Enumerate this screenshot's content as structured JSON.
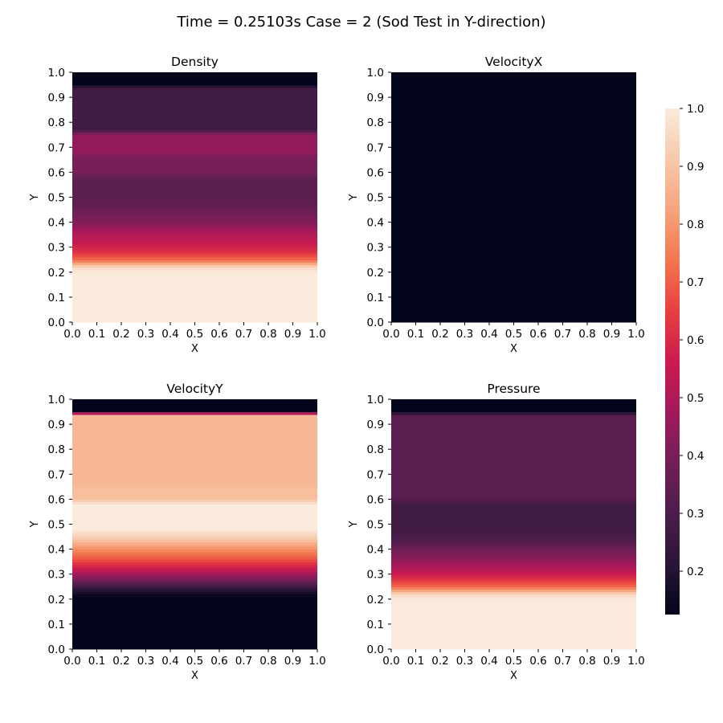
{
  "figure": {
    "title": "Time = 0.25103s  Case = 2 (Sod Test in Y-direction)"
  },
  "chart_data": [
    {
      "type": "heatmap",
      "title": "Density",
      "xlabel": "X",
      "ylabel": "Y",
      "xlim": [
        0.0,
        1.0
      ],
      "ylim": [
        0.0,
        1.0
      ],
      "xticks": [
        "0.0",
        "0.1",
        "0.2",
        "0.3",
        "0.4",
        "0.5",
        "0.6",
        "0.7",
        "0.8",
        "0.9",
        "1.0"
      ],
      "yticks": [
        "0.0",
        "0.1",
        "0.2",
        "0.3",
        "0.4",
        "0.5",
        "0.6",
        "0.7",
        "0.8",
        "0.9",
        "1.0"
      ],
      "profile_y": [
        0.0,
        0.2,
        0.22,
        0.25,
        0.28,
        0.32,
        0.36,
        0.4,
        0.44,
        0.48,
        0.58,
        0.6,
        0.66,
        0.68,
        0.75,
        0.77,
        0.94,
        0.95,
        1.0
      ],
      "profile_value": [
        1.0,
        1.0,
        0.95,
        0.72,
        0.62,
        0.55,
        0.5,
        0.42,
        0.38,
        0.34,
        0.34,
        0.4,
        0.4,
        0.45,
        0.45,
        0.27,
        0.27,
        0.125,
        0.125
      ]
    },
    {
      "type": "heatmap",
      "title": "VelocityX",
      "xlabel": "X",
      "ylabel": "Y",
      "xlim": [
        0.0,
        1.0
      ],
      "ylim": [
        0.0,
        1.0
      ],
      "xticks": [
        "0.0",
        "0.1",
        "0.2",
        "0.3",
        "0.4",
        "0.5",
        "0.6",
        "0.7",
        "0.8",
        "0.9",
        "1.0"
      ],
      "yticks": [
        "0.0",
        "0.1",
        "0.2",
        "0.3",
        "0.4",
        "0.5",
        "0.6",
        "0.7",
        "0.8",
        "0.9",
        "1.0"
      ],
      "profile_y": [
        0.0,
        1.0
      ],
      "profile_value": [
        0.125,
        0.125
      ]
    },
    {
      "type": "heatmap",
      "title": "VelocityY",
      "xlabel": "X",
      "ylabel": "Y",
      "xlim": [
        0.0,
        1.0
      ],
      "ylim": [
        0.0,
        1.0
      ],
      "xticks": [
        "0.0",
        "0.1",
        "0.2",
        "0.3",
        "0.4",
        "0.5",
        "0.6",
        "0.7",
        "0.8",
        "0.9",
        "1.0"
      ],
      "yticks": [
        "0.0",
        "0.1",
        "0.2",
        "0.3",
        "0.4",
        "0.5",
        "0.6",
        "0.7",
        "0.8",
        "0.9",
        "1.0"
      ],
      "profile_y": [
        0.0,
        0.21,
        0.24,
        0.28,
        0.32,
        0.36,
        0.4,
        0.44,
        0.48,
        0.52,
        0.58,
        0.6,
        0.64,
        0.66,
        0.7,
        0.72,
        0.9,
        0.94,
        0.945,
        0.95,
        0.955,
        1.0
      ],
      "profile_value": [
        0.125,
        0.125,
        0.22,
        0.4,
        0.55,
        0.68,
        0.78,
        0.9,
        1.0,
        1.0,
        1.0,
        0.89,
        0.89,
        0.87,
        0.87,
        0.87,
        0.87,
        0.87,
        0.5,
        0.5,
        0.125,
        0.125
      ]
    },
    {
      "type": "heatmap",
      "title": "Pressure",
      "xlabel": "X",
      "ylabel": "Y",
      "xlim": [
        0.0,
        1.0
      ],
      "ylim": [
        0.0,
        1.0
      ],
      "xticks": [
        "0.0",
        "0.1",
        "0.2",
        "0.3",
        "0.4",
        "0.5",
        "0.6",
        "0.7",
        "0.8",
        "0.9",
        "1.0"
      ],
      "yticks": [
        "0.0",
        "0.1",
        "0.2",
        "0.3",
        "0.4",
        "0.5",
        "0.6",
        "0.7",
        "0.8",
        "0.9",
        "1.0"
      ],
      "profile_y": [
        0.0,
        0.2,
        0.22,
        0.25,
        0.28,
        0.32,
        0.36,
        0.4,
        0.44,
        0.48,
        0.58,
        0.6,
        0.94,
        0.95,
        1.0
      ],
      "profile_value": [
        1.0,
        1.0,
        0.95,
        0.72,
        0.62,
        0.52,
        0.44,
        0.38,
        0.3,
        0.27,
        0.27,
        0.33,
        0.33,
        0.125,
        0.125
      ]
    }
  ],
  "colorbar": {
    "colormap": "rocket",
    "range": [
      0.125,
      1.0
    ],
    "ticks": [
      "0.2",
      "0.3",
      "0.4",
      "0.5",
      "0.6",
      "0.7",
      "0.8",
      "0.9",
      "1.0"
    ],
    "stops": [
      "#03051a",
      "#2a1636",
      "#4c1d4b",
      "#711f57",
      "#a11a5b",
      "#cb1b4f",
      "#e83f3f",
      "#f37651",
      "#f6a47c",
      "#f7c9aa",
      "#faebdd"
    ]
  }
}
